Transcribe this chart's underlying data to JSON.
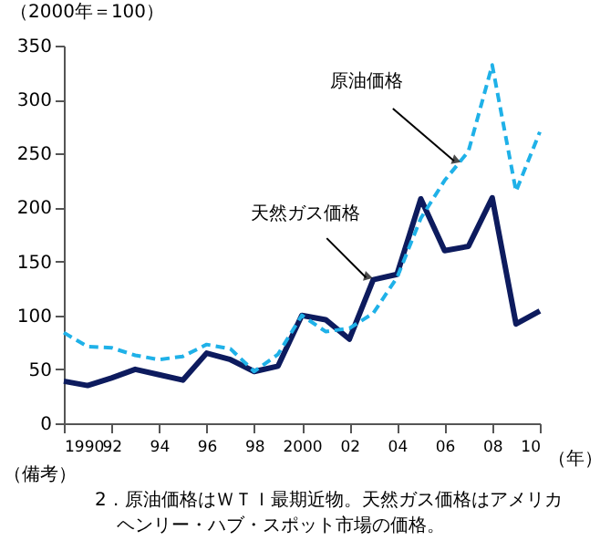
{
  "chart_data": {
    "type": "line",
    "ylabel": "（2000年＝100）",
    "xlabel": "（年）",
    "x": [
      1990,
      1991,
      1992,
      1993,
      1994,
      1995,
      1996,
      1997,
      1998,
      1999,
      2000,
      2001,
      2002,
      2003,
      2004,
      2005,
      2006,
      2007,
      2008,
      2009,
      2010
    ],
    "series": [
      {
        "color": "#0d1b5e",
        "line_style": "solid",
        "values": [
          39,
          35,
          42,
          50,
          45,
          40,
          65,
          59,
          48,
          53,
          100,
          96,
          78,
          133,
          138,
          208,
          160,
          164,
          209,
          92,
          104
        ]
      },
      {
        "color": "#1fb1e8",
        "line_style": "dashed",
        "values": [
          84,
          71,
          70,
          63,
          59,
          62,
          73,
          69,
          48,
          64,
          100,
          85,
          88,
          102,
          135,
          190,
          225,
          252,
          332,
          215,
          270
        ]
      }
    ],
    "xlim": [
      1990,
      2010
    ],
    "xticks": [
      {
        "value": 1990,
        "label": "1990"
      },
      {
        "value": 1992,
        "label": "92"
      },
      {
        "value": 1994,
        "label": "94"
      },
      {
        "value": 1996,
        "label": "96"
      },
      {
        "value": 1998,
        "label": "98"
      },
      {
        "value": 2000,
        "label": "2000"
      },
      {
        "value": 2002,
        "label": "02"
      },
      {
        "value": 2004,
        "label": "04"
      },
      {
        "value": 2006,
        "label": "06"
      },
      {
        "value": 2008,
        "label": "08"
      },
      {
        "value": 2010,
        "label": "10"
      }
    ],
    "ylim": [
      0,
      350
    ],
    "yticks": [
      0,
      50,
      100,
      150,
      200,
      250,
      300,
      350
    ],
    "grid": false,
    "legend": false,
    "marker": "none",
    "annotations": [
      {
        "text": "天然ガス価格",
        "x": 2002.7,
        "y": 135
      },
      {
        "text": "原油価格",
        "x": 2006.4,
        "y": 243
      },
      "（備考）",
      "2．原油価格はＷＴＩ最期近物。天然ガス価格はアメリカ",
      "ヘンリー・ハブ・スポット市場の価格。"
    ]
  }
}
